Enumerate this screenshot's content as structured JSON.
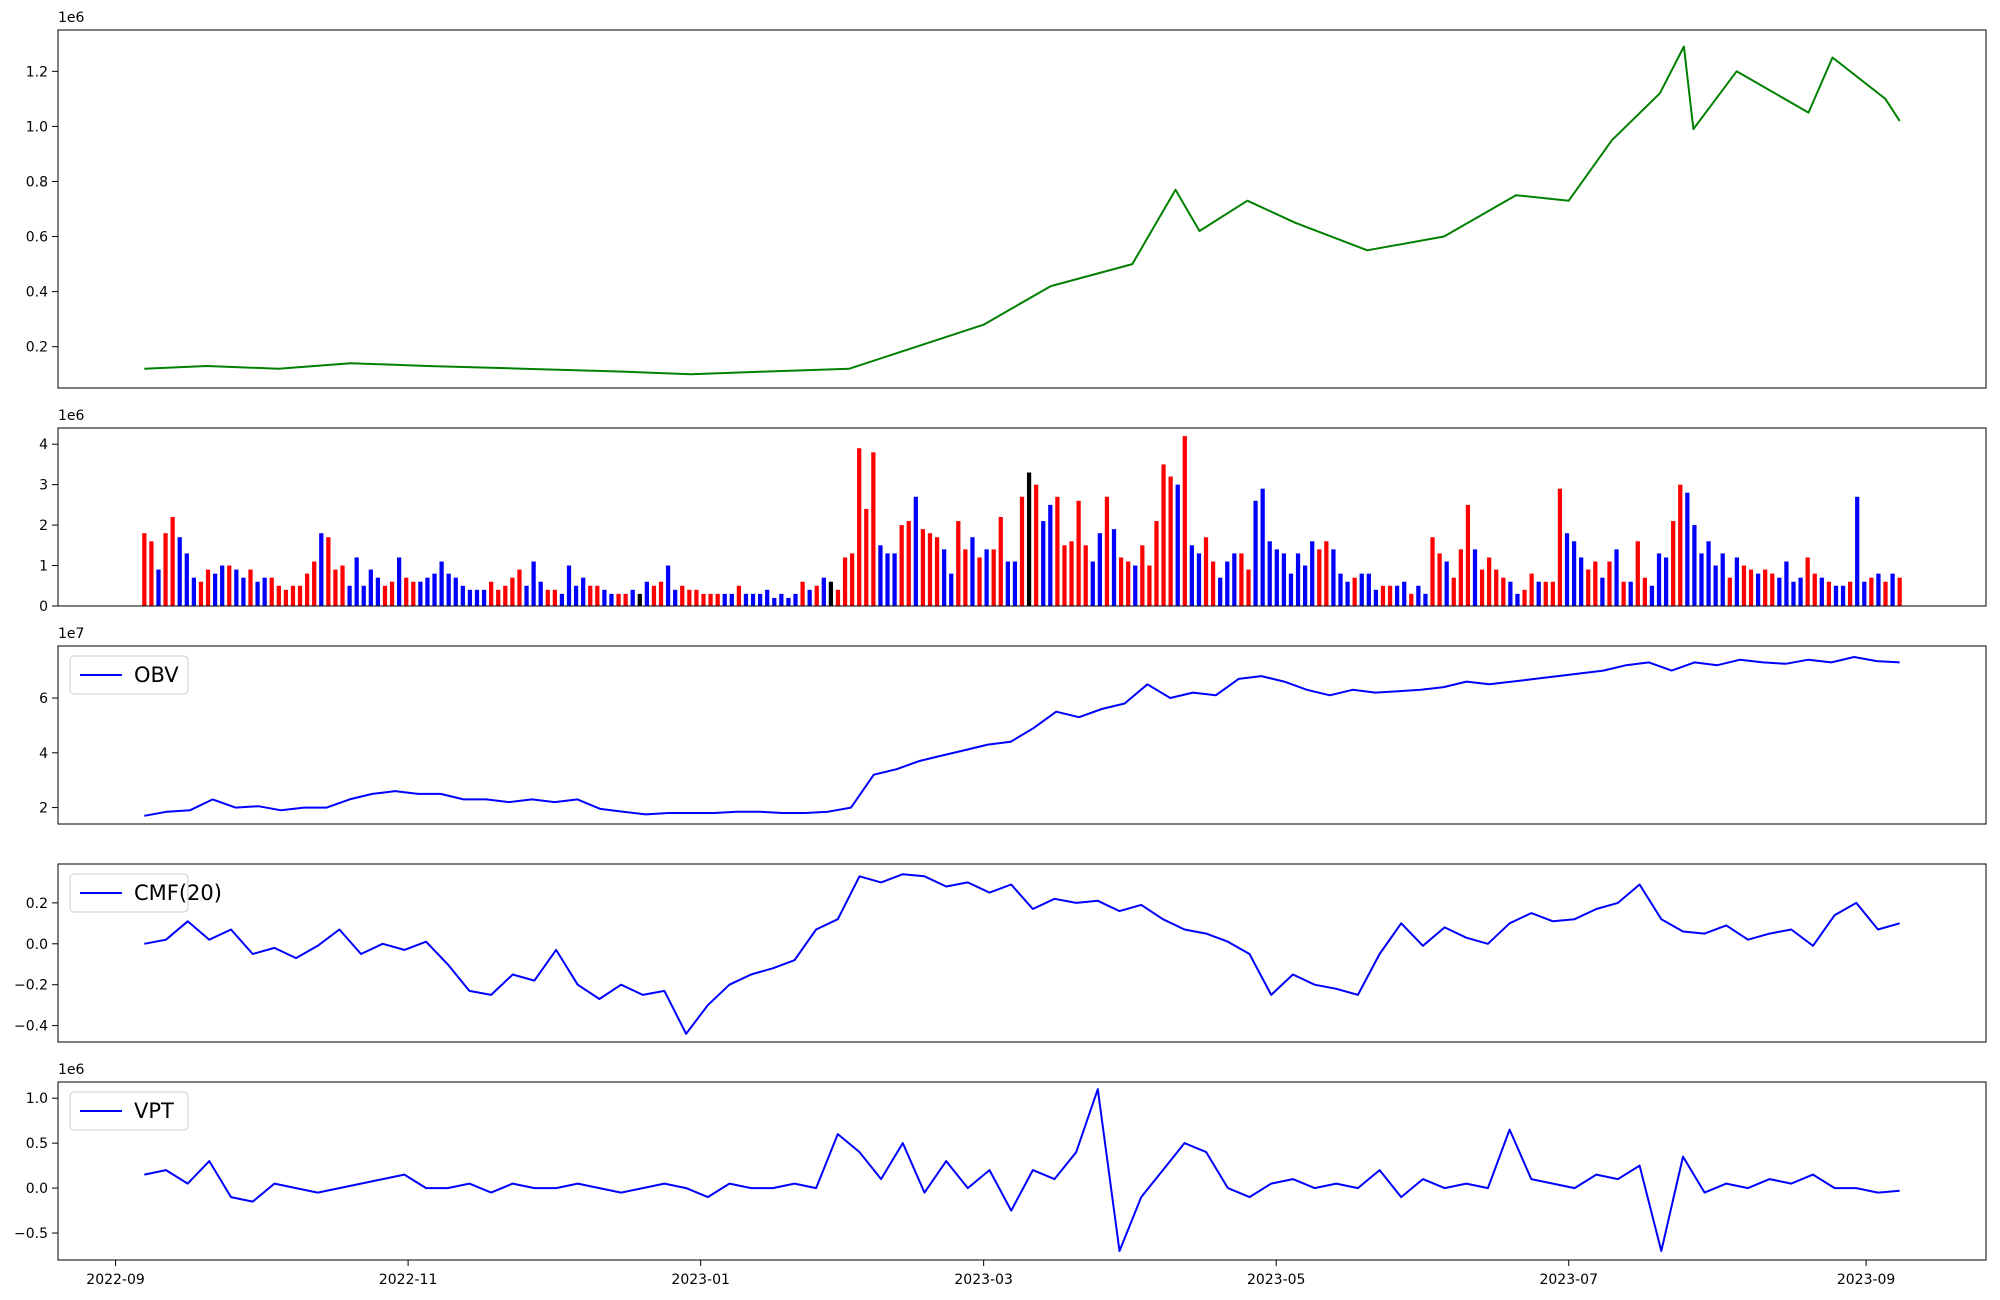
{
  "chart_data": [
    {
      "type": "line",
      "title": "",
      "offset_label": "1e6",
      "color": "#008000",
      "x_range": [
        "2022-09-07",
        "2023-09-08"
      ],
      "ylim": [
        0.05,
        1.35
      ],
      "y_ticks": [
        0.2,
        0.4,
        0.6,
        0.8,
        1.0,
        1.2
      ],
      "y_tick_labels": [
        "0.2",
        "0.4",
        "0.6",
        "0.8",
        "1.0",
        "1.2"
      ],
      "series": [
        {
          "x": [
            "2022-09-07",
            "2022-09-20",
            "2022-10-05",
            "2022-10-20",
            "2022-11-05",
            "2022-11-25",
            "2022-12-15",
            "2022-12-30",
            "2023-01-15",
            "2023-02-01",
            "2023-02-15",
            "2023-03-01",
            "2023-03-15",
            "2023-04-01",
            "2023-04-10",
            "2023-04-15",
            "2023-04-25",
            "2023-05-05",
            "2023-05-20",
            "2023-06-05",
            "2023-06-20",
            "2023-07-01",
            "2023-07-10",
            "2023-07-20",
            "2023-07-25",
            "2023-07-27",
            "2023-08-05",
            "2023-08-20",
            "2023-08-25",
            "2023-09-05",
            "2023-09-08"
          ],
          "values": [
            0.12,
            0.13,
            0.12,
            0.14,
            0.13,
            0.12,
            0.11,
            0.1,
            0.11,
            0.12,
            0.2,
            0.28,
            0.42,
            0.5,
            0.77,
            0.62,
            0.73,
            0.65,
            0.55,
            0.6,
            0.75,
            0.73,
            0.95,
            1.12,
            1.29,
            0.99,
            1.2,
            1.05,
            1.25,
            1.1,
            1.02
          ]
        }
      ]
    },
    {
      "type": "bar",
      "title": "",
      "offset_label": "1e6",
      "ylim": [
        0,
        4.4
      ],
      "y_ticks": [
        0,
        1,
        2,
        3,
        4
      ],
      "y_tick_labels": [
        "0",
        "1",
        "2",
        "3",
        "4"
      ],
      "colors": {
        "up": "#ff0000",
        "down": "#0000ff",
        "flat": "#000000"
      },
      "values": [
        1.8,
        1.6,
        0.9,
        1.8,
        2.2,
        1.7,
        1.3,
        0.7,
        0.6,
        0.9,
        0.8,
        1.0,
        1.0,
        0.9,
        0.7,
        0.9,
        0.6,
        0.7,
        0.7,
        0.5,
        0.4,
        0.5,
        0.5,
        0.8,
        1.1,
        1.8,
        1.7,
        0.9,
        1.0,
        0.5,
        1.2,
        0.5,
        0.9,
        0.7,
        0.5,
        0.6,
        1.2,
        0.7,
        0.6,
        0.6,
        0.7,
        0.8,
        1.1,
        0.8,
        0.7,
        0.5,
        0.4,
        0.4,
        0.4,
        0.6,
        0.4,
        0.5,
        0.7,
        0.9,
        0.5,
        1.1,
        0.6,
        0.4,
        0.4,
        0.3,
        1.0,
        0.5,
        0.7,
        0.5,
        0.5,
        0.4,
        0.3,
        0.3,
        0.3,
        0.4,
        0.3,
        0.6,
        0.5,
        0.6,
        1.0,
        0.4,
        0.5,
        0.4,
        0.4,
        0.3,
        0.3,
        0.3,
        0.3,
        0.3,
        0.5,
        0.3,
        0.3,
        0.3,
        0.4,
        0.2,
        0.3,
        0.2,
        0.3,
        0.6,
        0.4,
        0.5,
        0.7,
        0.6,
        0.4,
        1.2,
        1.3,
        3.9,
        2.4,
        3.8,
        1.5,
        1.3,
        1.3,
        2.0,
        2.1,
        2.7,
        1.9,
        1.8,
        1.7,
        1.4,
        0.8,
        2.1,
        1.4,
        1.7,
        1.2,
        1.4,
        1.4,
        2.2,
        1.1,
        1.1,
        2.7,
        3.3,
        3.0,
        2.1,
        2.5,
        2.7,
        1.5,
        1.6,
        2.6,
        1.5,
        1.1,
        1.8,
        2.7,
        1.9,
        1.2,
        1.1,
        1.0,
        1.5,
        1.0,
        2.1,
        3.5,
        3.2,
        3.0,
        4.2,
        1.5,
        1.3,
        1.7,
        1.1,
        0.7,
        1.1,
        1.3,
        1.3,
        0.9,
        2.6,
        2.9,
        1.6,
        1.4,
        1.3,
        0.8,
        1.3,
        1.0,
        1.6,
        1.4,
        1.6,
        1.4,
        0.8,
        0.6,
        0.7,
        0.8,
        0.8,
        0.4,
        0.5,
        0.5,
        0.5,
        0.6,
        0.3,
        0.5,
        0.3,
        1.7,
        1.3,
        1.1,
        0.7,
        1.4,
        2.5,
        1.4,
        0.9,
        1.2,
        0.9,
        0.7,
        0.6,
        0.3,
        0.4,
        0.8,
        0.6,
        0.6,
        0.6,
        2.9,
        1.8,
        1.6,
        1.2,
        0.9,
        1.1,
        0.7,
        1.1,
        1.4,
        0.6,
        0.6,
        1.6,
        0.7,
        0.5,
        1.3,
        1.2,
        2.1,
        3.0,
        2.8,
        2.0,
        1.3,
        1.6,
        1.0,
        1.3,
        0.7,
        1.2,
        1.0,
        0.9,
        0.8,
        0.9,
        0.8,
        0.7,
        1.1,
        0.6,
        0.7,
        1.2,
        0.8,
        0.7,
        0.6,
        0.5,
        0.5,
        0.6,
        2.7,
        0.6,
        0.7,
        0.8,
        0.6,
        0.8,
        0.7
      ],
      "bar_colors": [
        "up",
        "up",
        "down",
        "up",
        "up",
        "down",
        "down",
        "down",
        "up",
        "up",
        "down",
        "down",
        "up",
        "down",
        "down",
        "up",
        "down",
        "down",
        "up",
        "up",
        "up",
        "up",
        "up",
        "up",
        "up",
        "down",
        "up",
        "up",
        "up",
        "down",
        "down",
        "down",
        "down",
        "down",
        "up",
        "up",
        "down",
        "up",
        "up",
        "down",
        "down",
        "down",
        "down",
        "down",
        "down",
        "down",
        "down",
        "down",
        "down",
        "up",
        "up",
        "up",
        "up",
        "up",
        "down",
        "down",
        "down",
        "up",
        "up",
        "down",
        "down",
        "down",
        "down",
        "up",
        "up",
        "down",
        "down",
        "up",
        "up",
        "down",
        "flat",
        "down",
        "up",
        "up",
        "down",
        "down",
        "up",
        "up",
        "up",
        "up",
        "up",
        "up",
        "down",
        "down",
        "up",
        "down",
        "down",
        "down",
        "down",
        "down",
        "down",
        "down",
        "down",
        "up",
        "down",
        "up",
        "down",
        "flat",
        "up",
        "up",
        "up",
        "up",
        "up",
        "up",
        "down",
        "down",
        "down",
        "up",
        "up",
        "down",
        "up",
        "up",
        "up",
        "down",
        "down",
        "up",
        "up",
        "down",
        "up",
        "down",
        "up",
        "up",
        "down",
        "down",
        "up",
        "flat",
        "up",
        "down",
        "down",
        "up",
        "up",
        "up",
        "up",
        "up",
        "down",
        "down",
        "up",
        "down",
        "up",
        "up",
        "down",
        "up",
        "up",
        "up",
        "up",
        "up",
        "down",
        "up",
        "down",
        "down",
        "up",
        "up",
        "down",
        "down",
        "down",
        "up",
        "up",
        "down",
        "down",
        "down",
        "down",
        "down",
        "down",
        "down",
        "down",
        "down",
        "up",
        "up",
        "down",
        "down",
        "down",
        "up",
        "down",
        "down",
        "down",
        "up",
        "up",
        "down",
        "down",
        "up",
        "down",
        "down",
        "up",
        "up",
        "down",
        "up",
        "up",
        "up",
        "down",
        "up",
        "up",
        "up",
        "up",
        "down",
        "down",
        "up",
        "up",
        "down",
        "up",
        "up",
        "up",
        "down",
        "down",
        "down",
        "up",
        "up",
        "down",
        "up",
        "down",
        "up",
        "down",
        "up",
        "up",
        "down",
        "down",
        "down",
        "up",
        "up",
        "down",
        "down",
        "down",
        "down",
        "down",
        "down",
        "up",
        "down",
        "up",
        "up",
        "down",
        "up",
        "up",
        "down",
        "down",
        "down",
        "down",
        "up",
        "up",
        "down",
        "up",
        "down",
        "down",
        "up",
        "down",
        "down",
        "up",
        "down",
        "up",
        "down",
        "up",
        "down",
        "down",
        "up"
      ]
    },
    {
      "type": "line",
      "title": "",
      "offset_label": "1e7",
      "color": "#0000ff",
      "legend": "OBV",
      "ylim": [
        1.4,
        7.9
      ],
      "y_ticks": [
        2,
        4,
        6
      ],
      "y_tick_labels": [
        "2",
        "4",
        "6"
      ],
      "series": [
        {
          "name": "OBV",
          "values": [
            1.7,
            1.85,
            1.9,
            2.3,
            2.0,
            2.05,
            1.9,
            2.0,
            2.0,
            2.3,
            2.5,
            2.6,
            2.5,
            2.5,
            2.3,
            2.3,
            2.2,
            2.3,
            2.2,
            2.3,
            1.95,
            1.85,
            1.75,
            1.8,
            1.8,
            1.8,
            1.85,
            1.85,
            1.8,
            1.8,
            1.85,
            2.0,
            3.2,
            3.4,
            3.7,
            3.9,
            4.1,
            4.3,
            4.4,
            4.9,
            5.5,
            5.3,
            5.6,
            5.8,
            6.5,
            6.0,
            6.2,
            6.1,
            6.7,
            6.8,
            6.6,
            6.3,
            6.1,
            6.3,
            6.2,
            6.25,
            6.3,
            6.4,
            6.6,
            6.5,
            6.6,
            6.7,
            6.8,
            6.9,
            7.0,
            7.2,
            7.3,
            7.0,
            7.3,
            7.2,
            7.4,
            7.3,
            7.25,
            7.4,
            7.3,
            7.5,
            7.35,
            7.3
          ]
        }
      ]
    },
    {
      "type": "line",
      "title": "",
      "color": "#0000ff",
      "legend": "CMF(20)",
      "ylim": [
        -0.48,
        0.39
      ],
      "y_ticks": [
        -0.4,
        -0.2,
        0.0,
        0.2
      ],
      "y_tick_labels": [
        "−0.4",
        "−0.2",
        "0.0",
        "0.2"
      ],
      "series": [
        {
          "name": "CMF(20)",
          "values": [
            0.0,
            0.02,
            0.11,
            0.02,
            0.07,
            -0.05,
            -0.02,
            -0.07,
            -0.01,
            0.07,
            -0.05,
            0.0,
            -0.03,
            0.01,
            -0.1,
            -0.23,
            -0.25,
            -0.15,
            -0.18,
            -0.03,
            -0.2,
            -0.27,
            -0.2,
            -0.25,
            -0.23,
            -0.44,
            -0.3,
            -0.2,
            -0.15,
            -0.12,
            -0.08,
            0.07,
            0.12,
            0.33,
            0.3,
            0.34,
            0.33,
            0.28,
            0.3,
            0.25,
            0.29,
            0.17,
            0.22,
            0.2,
            0.21,
            0.16,
            0.19,
            0.12,
            0.07,
            0.05,
            0.01,
            -0.05,
            -0.25,
            -0.15,
            -0.2,
            -0.22,
            -0.25,
            -0.05,
            0.1,
            -0.01,
            0.08,
            0.03,
            0.0,
            0.1,
            0.15,
            0.11,
            0.12,
            0.17,
            0.2,
            0.29,
            0.12,
            0.06,
            0.05,
            0.09,
            0.02,
            0.05,
            0.07,
            -0.01,
            0.14,
            0.2,
            0.07,
            0.1
          ]
        }
      ]
    },
    {
      "type": "line",
      "title": "",
      "offset_label": "1e6",
      "color": "#0000ff",
      "legend": "VPT",
      "ylim": [
        -0.8,
        1.18
      ],
      "y_ticks": [
        -0.5,
        0.0,
        0.5,
        1.0
      ],
      "y_tick_labels": [
        "−0.5",
        "0.0",
        "0.5",
        "1.0"
      ],
      "series": [
        {
          "name": "VPT",
          "values": [
            0.15,
            0.2,
            0.05,
            0.3,
            -0.1,
            -0.15,
            0.05,
            0.0,
            -0.05,
            0.0,
            0.05,
            0.1,
            0.15,
            0.0,
            0.0,
            0.05,
            -0.05,
            0.05,
            0.0,
            0.0,
            0.05,
            0.0,
            -0.05,
            0.0,
            0.05,
            0.0,
            -0.1,
            0.05,
            0.0,
            0.0,
            0.05,
            0.0,
            0.6,
            0.4,
            0.1,
            0.5,
            -0.05,
            0.3,
            0.0,
            0.2,
            -0.25,
            0.2,
            0.1,
            0.4,
            1.1,
            -0.7,
            -0.1,
            0.2,
            0.5,
            0.4,
            0.0,
            -0.1,
            0.05,
            0.1,
            0.0,
            0.05,
            0.0,
            0.2,
            -0.1,
            0.1,
            0.0,
            0.05,
            0.0,
            0.65,
            0.1,
            0.05,
            0.0,
            0.15,
            0.1,
            0.25,
            -0.7,
            0.35,
            -0.05,
            0.05,
            0.0,
            0.1,
            0.05,
            0.15,
            0.0,
            0.0,
            -0.05,
            -0.03
          ]
        }
      ]
    }
  ],
  "x_axis": {
    "ticks": [
      "2022-09-01",
      "2022-11-01",
      "2023-01-01",
      "2023-03-01",
      "2023-05-01",
      "2023-07-01",
      "2023-09-01"
    ],
    "tick_labels": [
      "2022-09",
      "2022-11",
      "2023-01",
      "2023-03",
      "2023-05",
      "2023-07",
      "2023-09"
    ],
    "range": [
      "2022-08-20",
      "2023-09-26"
    ]
  }
}
